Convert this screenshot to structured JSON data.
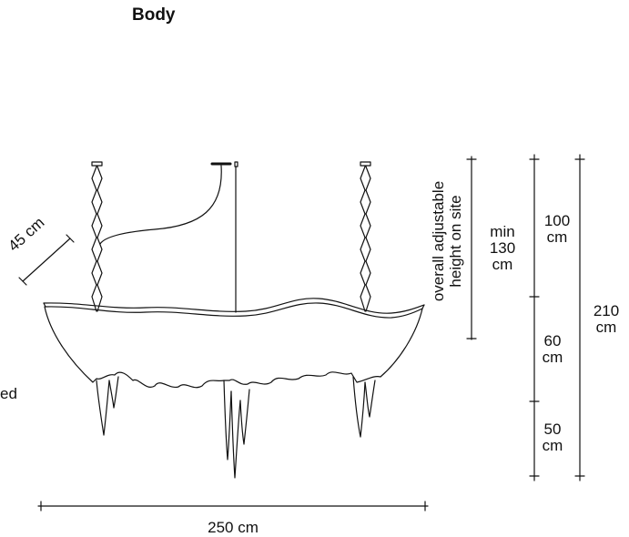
{
  "title": "Body",
  "cut_text": "ed",
  "dims": {
    "diagonal": "45 cm",
    "adjustable_line1": "overall adjustable",
    "adjustable_line2": "height on site",
    "min_line1": "min",
    "min_line2": "130",
    "min_line3": "cm",
    "d100_line1": "100",
    "d100_line2": "cm",
    "d60_line1": "60",
    "d60_line2": "cm",
    "d50_line1": "50",
    "d50_line2": "cm",
    "d210_line1": "210",
    "d210_line2": "cm",
    "width": "250 cm"
  }
}
